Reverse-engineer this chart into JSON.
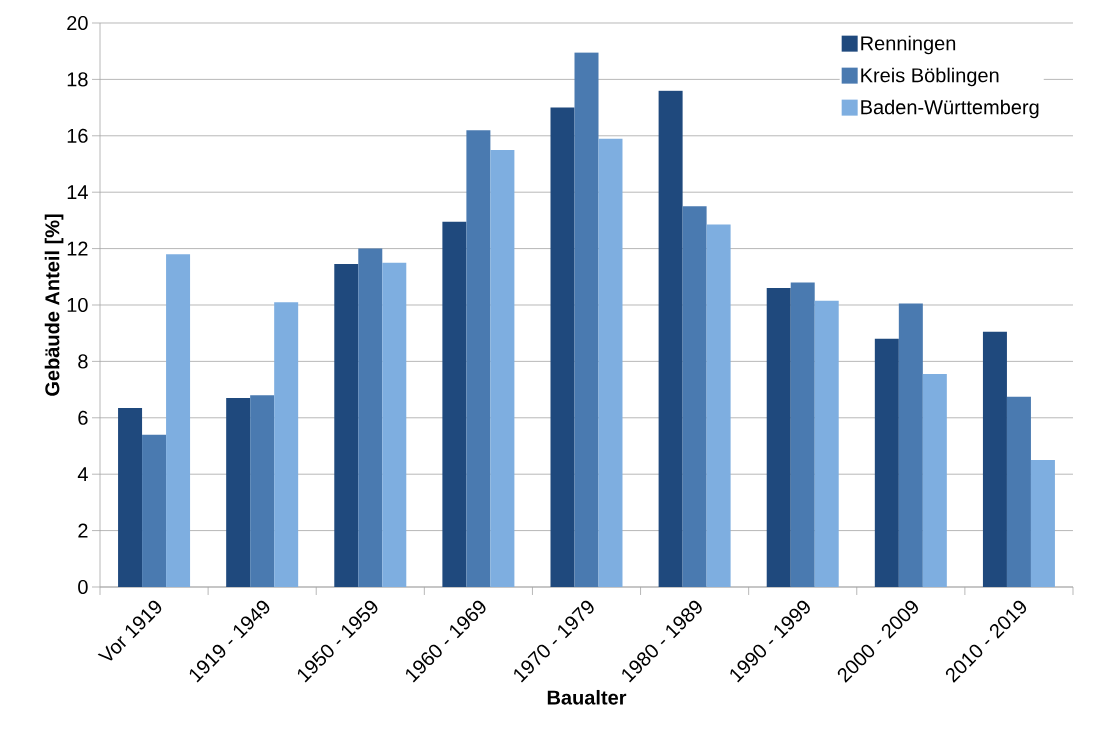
{
  "chart_data": {
    "type": "bar",
    "xlabel": "Baualter",
    "ylabel": "Gebäude Anteil [%]",
    "categories": [
      "Vor 1919",
      "1919 - 1949",
      "1950 - 1959",
      "1960 - 1969",
      "1970 - 1979",
      "1980 - 1989",
      "1990 - 1999",
      "2000 - 2009",
      "2010 - 2019"
    ],
    "series": [
      {
        "name": "Renningen",
        "color": "#1f497d",
        "values": [
          6.35,
          6.7,
          11.45,
          12.95,
          17.0,
          17.6,
          10.6,
          8.8,
          9.05
        ]
      },
      {
        "name": "Kreis Böblingen",
        "color": "#4a7ab0",
        "values": [
          5.4,
          6.8,
          12.0,
          16.2,
          18.95,
          13.5,
          10.8,
          10.05,
          6.75
        ]
      },
      {
        "name": "Baden-Württemberg",
        "color": "#7eaee0",
        "values": [
          11.8,
          10.1,
          11.5,
          15.5,
          15.9,
          12.85,
          10.15,
          7.55,
          4.5
        ]
      }
    ],
    "ylim": [
      0,
      20
    ],
    "yticks": [
      0,
      2,
      4,
      6,
      8,
      10,
      12,
      14,
      16,
      18,
      20
    ],
    "grid": "y",
    "legend": "top right"
  }
}
